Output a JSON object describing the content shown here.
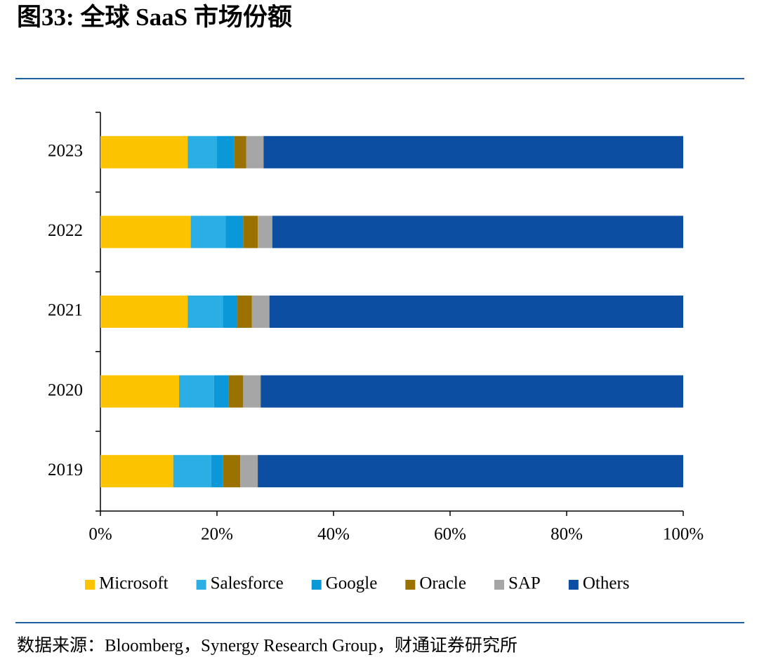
{
  "chart_data": {
    "type": "stacked-barh",
    "title": "图33: 全球 SaaS 市场份额",
    "source": "数据来源：Bloomberg，Synergy Research Group，财通证券研究所",
    "categories": [
      "2019",
      "2020",
      "2021",
      "2022",
      "2023"
    ],
    "series": [
      {
        "name": "Microsoft",
        "color": "#fbc300",
        "values": [
          12.5,
          13.5,
          15,
          15.5,
          15
        ]
      },
      {
        "name": "Salesforce",
        "color": "#2aaee3",
        "values": [
          6.5,
          6,
          6,
          6,
          5
        ]
      },
      {
        "name": "Google",
        "color": "#0a98d8",
        "values": [
          2,
          2.5,
          2.5,
          3,
          3
        ]
      },
      {
        "name": "Oracle",
        "color": "#9b7200",
        "values": [
          3,
          2.5,
          2.5,
          2.5,
          2
        ]
      },
      {
        "name": "SAP",
        "color": "#a6a6a6",
        "values": [
          3,
          3,
          3,
          2.5,
          3
        ]
      },
      {
        "name": "Others",
        "color": "#0b4ea2",
        "values": [
          73,
          72.5,
          71,
          70.5,
          72
        ]
      }
    ],
    "xlim": [
      0,
      100
    ],
    "xticks": [
      {
        "value": 0,
        "label": "0%"
      },
      {
        "value": 20,
        "label": "20%"
      },
      {
        "value": 40,
        "label": "40%"
      },
      {
        "value": 60,
        "label": "60%"
      },
      {
        "value": 80,
        "label": "80%"
      },
      {
        "value": 100,
        "label": "100%"
      }
    ],
    "legend": "bottom"
  }
}
